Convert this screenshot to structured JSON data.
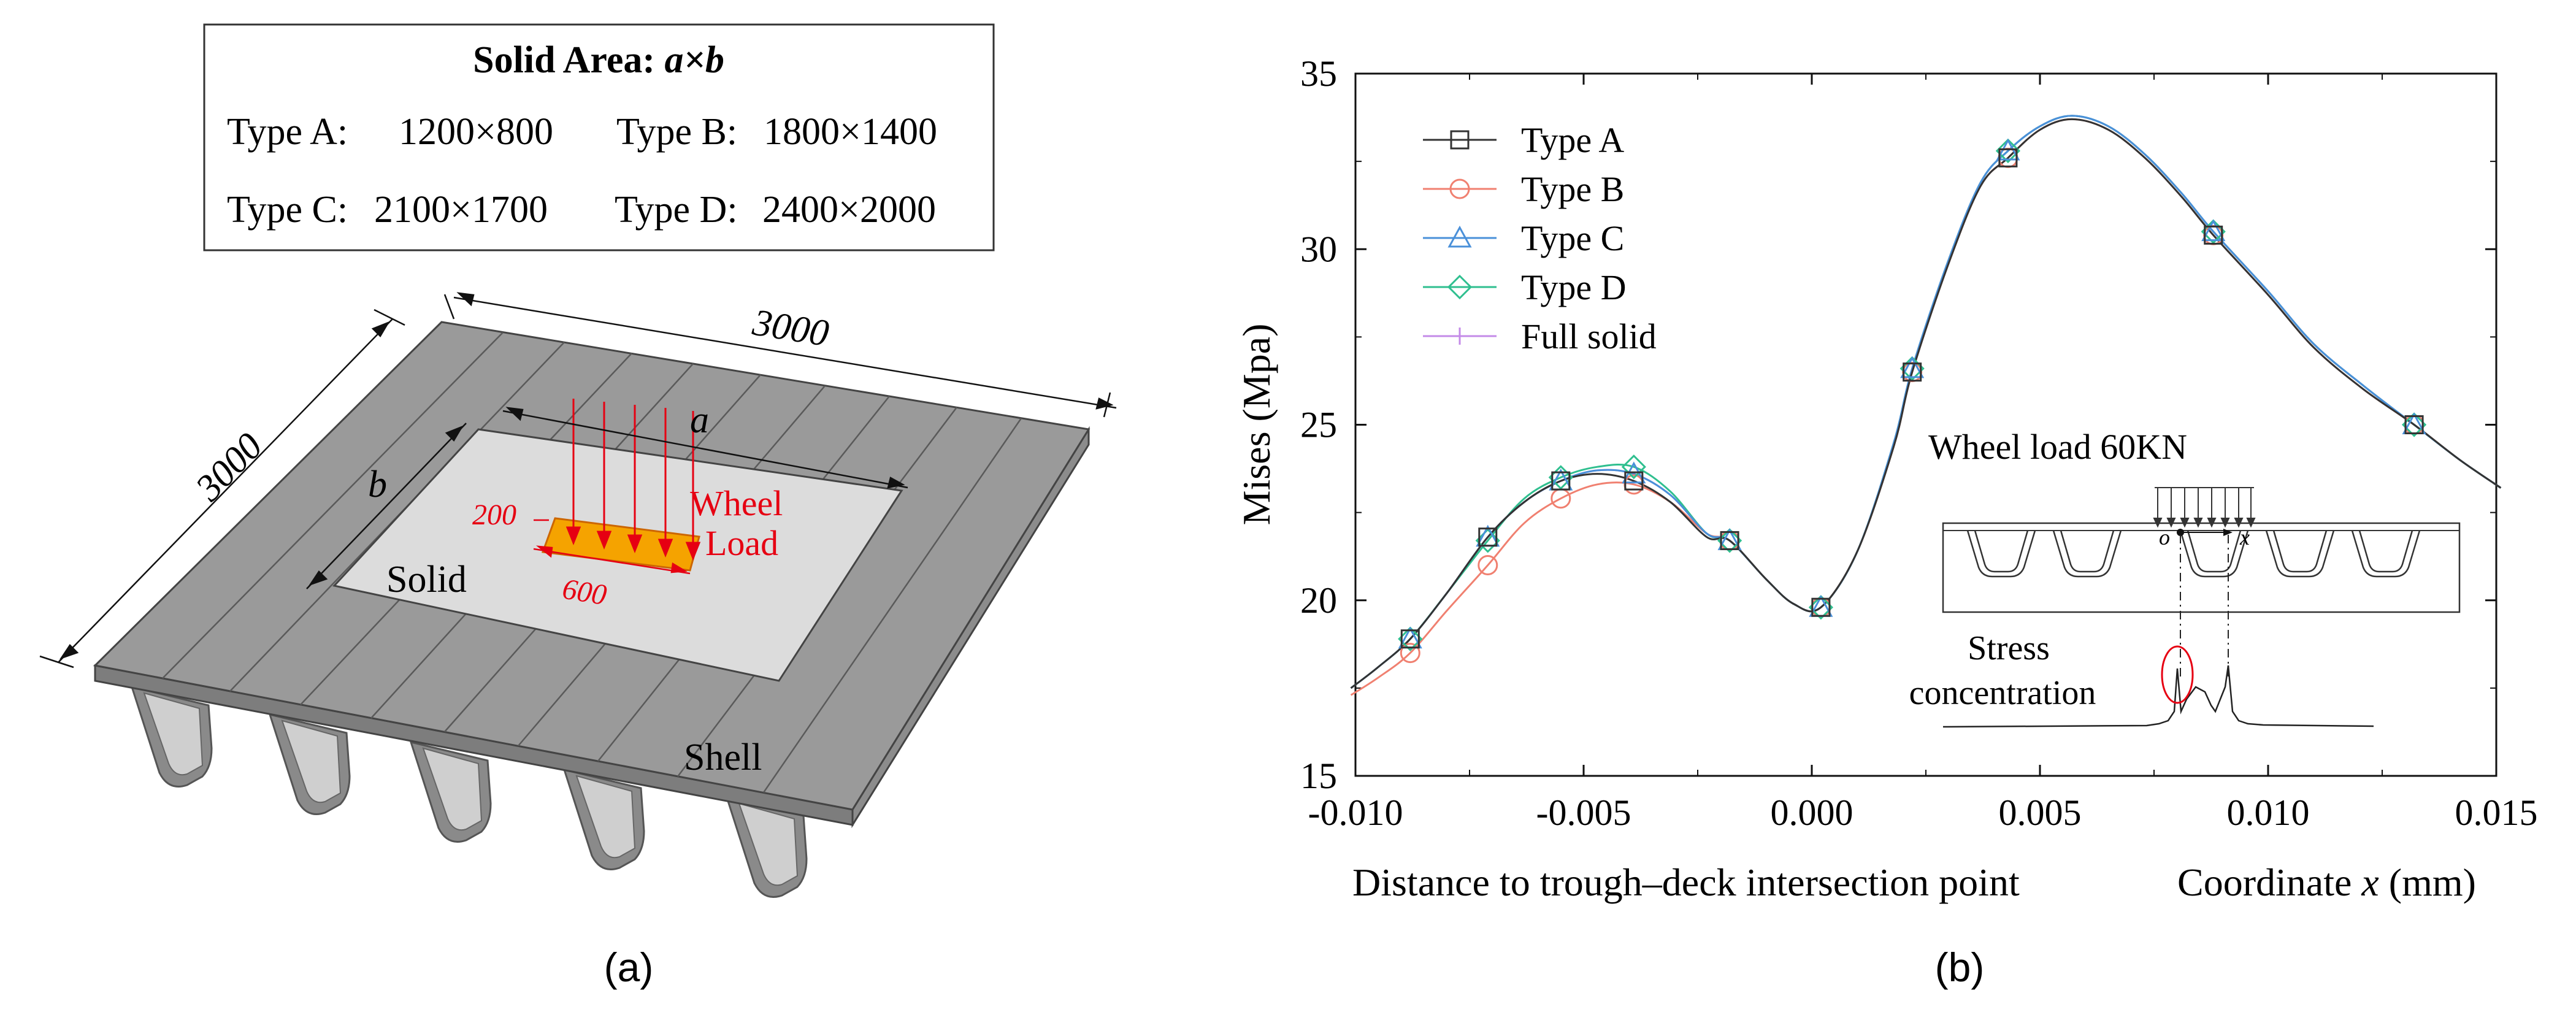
{
  "panel_a": {
    "label": "(a)",
    "solid_area_box": {
      "title_prefix": "Solid Area: ",
      "title_formula": "a×b",
      "types": [
        {
          "name": "Type A:",
          "size": "1200×800"
        },
        {
          "name": "Type B:",
          "size": "1800×1400"
        },
        {
          "name": "Type C:",
          "size": "2100×1700"
        },
        {
          "name": "Type D:",
          "size": "2400×2000"
        }
      ]
    },
    "dimensions": {
      "top": "3000",
      "left": "3000",
      "a": "a",
      "b": "b",
      "load_width": "200",
      "load_length": "600"
    },
    "labels": {
      "wheel_line1": "Wheel",
      "wheel_line2": "Load",
      "solid": "Solid",
      "shell": "Shell"
    },
    "colors": {
      "load": "#e60012",
      "patch": "#f5a300",
      "deck": "#9a9a9a",
      "solid_region": "#dcdcdc"
    }
  },
  "panel_b": {
    "label": "(b)",
    "inset": {
      "title": "Wheel load 60KN",
      "origin_label": "o",
      "axis_label": "x",
      "stress_label_line1": "Stress",
      "stress_label_line2": "concentration"
    },
    "xlabel_left": "Distance to trough–deck intersection point",
    "xlabel_right_prefix": "Coordinate ",
    "xlabel_right_var": "x",
    "xlabel_right_unit": " (mm)"
  },
  "chart_data": {
    "type": "line",
    "title": "",
    "ylabel": "Mises (Mpa)",
    "xlabel": "Distance to trough–deck intersection point    Coordinate x (mm)",
    "xlim": [
      -0.01,
      0.015
    ],
    "ylim": [
      15,
      35
    ],
    "xticks": [
      "-0.010",
      "-0.005",
      "0.000",
      "0.005",
      "0.010",
      "0.015"
    ],
    "yticks": [
      "15",
      "20",
      "25",
      "30",
      "35"
    ],
    "legend_position": "top-left",
    "series": [
      {
        "name": "Type A",
        "color": "#333333",
        "marker": "square",
        "x": [
          -0.0101,
          -0.0095,
          -0.0088,
          -0.008,
          -0.0071,
          -0.0063,
          -0.0055,
          -0.0047,
          -0.0039,
          -0.0031,
          -0.0023,
          -0.0018,
          -0.001,
          -0.0004,
          0.0002,
          0.001,
          0.0018,
          0.0022,
          0.003,
          0.0037,
          0.0043,
          0.005,
          0.0057,
          0.0065,
          0.0073,
          0.0081,
          0.0088,
          0.01,
          0.011,
          0.0121,
          0.0132,
          0.0142,
          0.0151
        ],
        "y": [
          17.5,
          18.1,
          18.9,
          20.2,
          21.8,
          22.8,
          23.4,
          23.6,
          23.4,
          22.8,
          21.8,
          21.7,
          20.6,
          19.9,
          19.8,
          21.4,
          24.4,
          26.5,
          29.6,
          31.8,
          32.6,
          33.4,
          33.7,
          33.4,
          32.6,
          31.5,
          30.4,
          28.7,
          27.2,
          26.0,
          25.0,
          24.0,
          23.2
        ],
        "marker_x": [
          -0.0088,
          -0.0071,
          -0.0055,
          -0.0039,
          -0.0018,
          0.0002,
          0.0022,
          0.0043,
          0.0088,
          0.0132
        ]
      },
      {
        "name": "Type B",
        "color": "#f08070",
        "marker": "circle",
        "x": [
          -0.0101,
          -0.0095,
          -0.0088,
          -0.008,
          -0.0071,
          -0.0063,
          -0.0055,
          -0.0047,
          -0.0039,
          -0.0031,
          -0.0023,
          -0.0018,
          -0.001,
          -0.0004,
          0.0002,
          0.001,
          0.0018,
          0.0022,
          0.003,
          0.0037,
          0.0043,
          0.005,
          0.0057,
          0.0065,
          0.0073,
          0.0081,
          0.0088,
          0.01,
          0.011,
          0.0121,
          0.0132,
          0.0142,
          0.0151
        ],
        "y": [
          17.3,
          17.8,
          18.5,
          19.7,
          21.0,
          22.2,
          22.9,
          23.3,
          23.3,
          22.8,
          21.9,
          21.7,
          20.6,
          19.9,
          19.8,
          21.4,
          24.4,
          26.5,
          29.6,
          31.8,
          32.6,
          33.4,
          33.7,
          33.4,
          32.6,
          31.5,
          30.4,
          28.7,
          27.2,
          26.0,
          25.0,
          24.0,
          23.2
        ],
        "marker_x": [
          -0.0088,
          -0.0071,
          -0.0055,
          -0.0039,
          -0.0018,
          0.0002,
          0.0022,
          0.0043,
          0.0088,
          0.0132
        ]
      },
      {
        "name": "Type C",
        "color": "#4a90d9",
        "marker": "triangle",
        "x": [
          -0.0101,
          -0.0095,
          -0.0088,
          -0.008,
          -0.0071,
          -0.0063,
          -0.0055,
          -0.0047,
          -0.0039,
          -0.0031,
          -0.0023,
          -0.0018,
          -0.001,
          -0.0004,
          0.0002,
          0.001,
          0.0018,
          0.0022,
          0.003,
          0.0037,
          0.0043,
          0.005,
          0.0057,
          0.0065,
          0.0073,
          0.0081,
          0.0088,
          0.01,
          0.011,
          0.0121,
          0.0132,
          0.0142,
          0.0151
        ],
        "y": [
          17.5,
          18.1,
          18.9,
          20.2,
          21.8,
          22.8,
          23.4,
          23.7,
          23.6,
          23.0,
          21.9,
          21.7,
          20.6,
          19.9,
          19.8,
          21.4,
          24.5,
          26.6,
          29.7,
          31.9,
          32.8,
          33.5,
          33.8,
          33.5,
          32.7,
          31.6,
          30.5,
          28.8,
          27.3,
          26.1,
          25.0,
          24.0,
          23.2
        ],
        "marker_x": [
          -0.0088,
          -0.0071,
          -0.0055,
          -0.0039,
          -0.0018,
          0.0002,
          0.0022,
          0.0043,
          0.0088,
          0.0132
        ]
      },
      {
        "name": "Type D",
        "color": "#2fbf8f",
        "marker": "diamond",
        "x": [
          -0.0101,
          -0.0095,
          -0.0088,
          -0.008,
          -0.0071,
          -0.0063,
          -0.0055,
          -0.0047,
          -0.0039,
          -0.0031,
          -0.0023,
          -0.0018,
          -0.001,
          -0.0004,
          0.0002,
          0.001,
          0.0018,
          0.0022,
          0.003,
          0.0037,
          0.0043,
          0.005,
          0.0057,
          0.0065,
          0.0073,
          0.0081,
          0.0088,
          0.01,
          0.011,
          0.0121,
          0.0132,
          0.0142,
          0.0151
        ],
        "y": [
          17.5,
          18.1,
          18.9,
          20.2,
          21.7,
          22.9,
          23.5,
          23.8,
          23.8,
          23.1,
          21.9,
          21.7,
          20.6,
          19.9,
          19.8,
          21.4,
          24.5,
          26.6,
          29.7,
          31.9,
          32.8,
          33.5,
          33.8,
          33.5,
          32.7,
          31.6,
          30.5,
          28.8,
          27.3,
          26.1,
          25.0,
          24.0,
          23.2
        ],
        "marker_x": [
          -0.0088,
          -0.0071,
          -0.0055,
          -0.0039,
          -0.0018,
          0.0002,
          0.0022,
          0.0043,
          0.0088,
          0.0132
        ]
      },
      {
        "name": "Full solid",
        "color": "#c48be8",
        "marker": "plus",
        "x": [
          -0.0101,
          -0.0095,
          -0.0088,
          -0.008,
          -0.0071,
          -0.0063,
          -0.0055,
          -0.0047,
          -0.0039,
          -0.0031,
          -0.0023,
          -0.0018,
          -0.001,
          -0.0004,
          0.0002,
          0.001,
          0.0018,
          0.0022,
          0.003,
          0.0037,
          0.0043,
          0.005,
          0.0057,
          0.0065,
          0.0073,
          0.0081,
          0.0088,
          0.01,
          0.011,
          0.0121,
          0.0132,
          0.0142,
          0.0151
        ],
        "y": [
          17.5,
          18.1,
          18.9,
          20.2,
          21.8,
          22.8,
          23.4,
          23.7,
          23.6,
          23.0,
          21.9,
          21.7,
          20.6,
          19.9,
          19.8,
          21.4,
          24.5,
          26.6,
          29.7,
          31.9,
          32.8,
          33.5,
          33.8,
          33.5,
          32.7,
          31.6,
          30.5,
          28.8,
          27.3,
          26.1,
          25.0,
          24.0,
          23.2
        ],
        "marker_x": []
      }
    ]
  }
}
